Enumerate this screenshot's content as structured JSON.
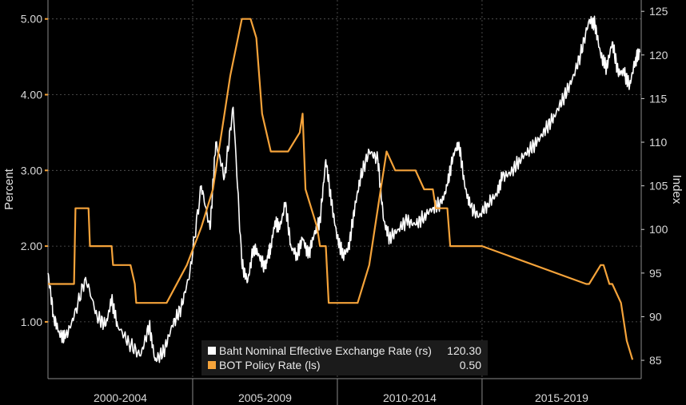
{
  "chart_data": {
    "type": "line",
    "title": "",
    "left_axis": {
      "label": "Percent",
      "ticks": [
        "1.00",
        "2.00",
        "3.00",
        "4.00",
        "5.00"
      ],
      "range": [
        0.25,
        5.25
      ]
    },
    "right_axis": {
      "label": "Index",
      "ticks": [
        "85",
        "90",
        "95",
        "100",
        "105",
        "110",
        "115",
        "120",
        "125"
      ],
      "range": [
        82.9,
        126.3
      ]
    },
    "x_axis": {
      "range": [
        1999.5,
        2020.0
      ],
      "period_labels": [
        "2000-2004",
        "2005-2009",
        "2010-2014",
        "2015-2019"
      ],
      "period_boundaries": [
        2004.5,
        2009.5,
        2014.5
      ]
    },
    "grid": true,
    "legend_position": "bottom-center",
    "series": [
      {
        "name": "Baht Nominal Effective Exchange Rate (rs)",
        "axis": "right",
        "color": "#ffffff",
        "last_value": "120.30",
        "x": [
          1999.5,
          1999.7,
          1999.9,
          2000.1,
          2000.4,
          2000.8,
          2001.2,
          2001.5,
          2001.7,
          2001.9,
          2002.3,
          2002.7,
          2003.0,
          2003.2,
          2003.5,
          2003.8,
          2004.1,
          2004.4,
          2004.8,
          2005.1,
          2005.3,
          2005.6,
          2005.9,
          2006.2,
          2006.4,
          2006.6,
          2006.8,
          2007.0,
          2007.1,
          2007.2,
          2007.35,
          2007.5,
          2007.7,
          2007.9,
          2008.1,
          2008.3,
          2008.5,
          2008.7,
          2008.9,
          2009.1,
          2009.3,
          2009.5,
          2009.7,
          2009.9,
          2010.1,
          2010.3,
          2010.6,
          2010.9,
          2011.1,
          2011.3,
          2011.6,
          2011.9,
          2012.2,
          2012.5,
          2012.8,
          2013.1,
          2013.3,
          2013.5,
          2013.7,
          2013.9,
          2014.1,
          2014.4,
          2014.7,
          2015.0,
          2015.2,
          2015.5,
          2015.8,
          2016.1,
          2016.4,
          2016.7,
          2017.0,
          2017.3,
          2017.6,
          2017.9,
          2018.2,
          2018.4,
          2018.6,
          2018.8,
          2019.0,
          2019.2,
          2019.4,
          2019.6,
          2019.8,
          2019.95
        ],
        "y": [
          95.0,
          90.0,
          88.0,
          87.5,
          90.0,
          94.5,
          90.0,
          89.0,
          92.0,
          89.0,
          87.0,
          85.5,
          89.0,
          85.0,
          86.0,
          89.0,
          91.0,
          95.0,
          105.0,
          100.0,
          110.0,
          106.0,
          114.0,
          96.0,
          94.0,
          98.0,
          97.0,
          95.5,
          97.0,
          98.0,
          101.0,
          100.0,
          103.0,
          98.0,
          97.0,
          99.0,
          97.0,
          99.5,
          101.0,
          108.0,
          103.0,
          99.0,
          97.0,
          98.0,
          102.5,
          106.0,
          109.0,
          108.0,
          101.0,
          99.0,
          100.0,
          101.0,
          100.5,
          101.5,
          102.5,
          103.0,
          105.0,
          108.5,
          110.0,
          105.0,
          102.5,
          101.5,
          103.0,
          104.0,
          106.0,
          106.5,
          108.0,
          109.0,
          110.0,
          111.5,
          113.0,
          115.0,
          117.0,
          120.0,
          124.0,
          123.5,
          120.0,
          118.5,
          121.5,
          118.0,
          118.0,
          116.5,
          119.5,
          120.3
        ]
      },
      {
        "name": "BOT Policy Rate (ls)",
        "axis": "left",
        "color": "#f5a33a",
        "last_value": "0.50",
        "x": [
          1999.5,
          2000.4,
          2000.45,
          2000.9,
          2000.95,
          2001.7,
          2001.75,
          2002.3,
          2002.35,
          2002.5,
          2002.55,
          2003.5,
          2003.6,
          2004.3,
          2004.8,
          2005.2,
          2005.6,
          2005.8,
          2006.2,
          2006.4,
          2006.5,
          2006.7,
          2006.9,
          2007.2,
          2007.3,
          2007.5,
          2007.7,
          2007.8,
          2008.2,
          2008.3,
          2008.4,
          2008.8,
          2008.9,
          2009.1,
          2009.2,
          2010.2,
          2010.6,
          2010.8,
          2011.0,
          2011.2,
          2011.5,
          2012.1,
          2012.2,
          2012.5,
          2012.6,
          2012.8,
          2012.9,
          2013.3,
          2013.4,
          2014.4,
          2014.5,
          2018.1,
          2018.2,
          2018.6,
          2018.7,
          2018.9,
          2019.0,
          2019.3,
          2019.5,
          2019.7
        ],
        "y": [
          1.5,
          1.5,
          2.5,
          2.5,
          2.0,
          2.0,
          1.75,
          1.75,
          1.75,
          1.5,
          1.25,
          1.25,
          1.25,
          1.75,
          2.25,
          2.75,
          3.75,
          4.25,
          5.0,
          5.0,
          5.0,
          4.75,
          3.75,
          3.25,
          3.25,
          3.25,
          3.25,
          3.25,
          3.5,
          3.75,
          2.75,
          2.25,
          2.0,
          2.0,
          1.25,
          1.25,
          1.75,
          2.25,
          2.75,
          3.25,
          3.0,
          3.0,
          3.0,
          2.75,
          2.75,
          2.75,
          2.5,
          2.5,
          2.0,
          2.0,
          2.0,
          1.5,
          1.5,
          1.75,
          1.75,
          1.5,
          1.5,
          1.25,
          0.75,
          0.5
        ]
      }
    ]
  }
}
